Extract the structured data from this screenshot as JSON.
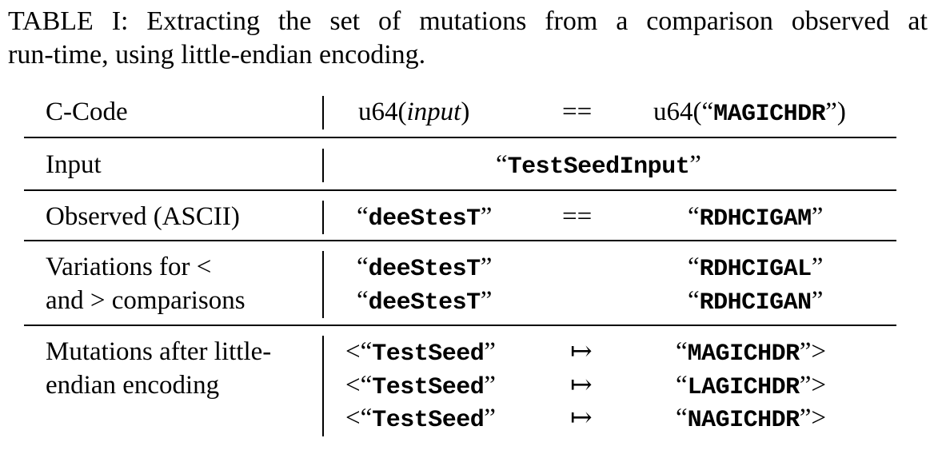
{
  "caption": {
    "line1_words": [
      "TABLE",
      "I:",
      "Extracting",
      "the",
      "set",
      "of",
      "mutations",
      "from",
      "a",
      "comparison",
      "observed",
      "at"
    ],
    "line2": "run-time, using little-endian encoding."
  },
  "table": {
    "header": {
      "row_label": "C-Code",
      "lhs_fn": "u64(",
      "lhs_arg": "input",
      "lhs_close": ")",
      "op": "==",
      "rhs_fn": "u64(“",
      "rhs_arg": "MAGICHDR",
      "rhs_close": "”)"
    },
    "input_row": {
      "row_label": "Input",
      "value": "TestSeedInput"
    },
    "observed_row": {
      "row_label": "Observed (ASCII)",
      "lhs": "deeStesT",
      "op": "==",
      "rhs": "RDHCIGAM"
    },
    "variations_row": {
      "label_line1": "Variations for <",
      "label_line2": "and > comparisons",
      "lines": [
        {
          "lhs": "deeStesT",
          "rhs": "RDHCIGAL"
        },
        {
          "lhs": "deeStesT",
          "rhs": "RDHCIGAN"
        }
      ]
    },
    "mutations_row": {
      "label_line1": "Mutations after little-",
      "label_line2": "endian encoding",
      "arrow": "↦",
      "lines": [
        {
          "lhs": "TestSeed",
          "rhs": "MAGICHDR"
        },
        {
          "lhs": "TestSeed",
          "rhs": "LAGICHDR"
        },
        {
          "lhs": "TestSeed",
          "rhs": "NAGICHDR"
        }
      ]
    }
  }
}
